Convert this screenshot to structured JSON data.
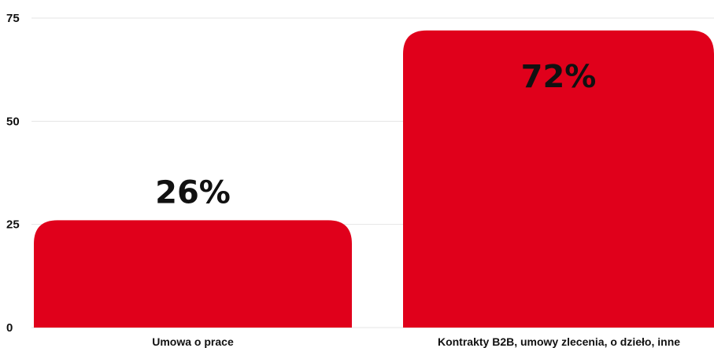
{
  "chart_data": {
    "type": "bar",
    "categories": [
      "Umowa o prace",
      "Kontrakty B2B, umowy zlecenia, o dzieło, inne"
    ],
    "values": [
      26,
      72
    ],
    "value_labels": [
      "26%",
      "72%"
    ],
    "yticks": [
      "0",
      "25",
      "50",
      "75"
    ],
    "ylim": [
      0,
      75
    ],
    "grid": true,
    "bar_color": "#e0001b",
    "title": "",
    "xlabel": "",
    "ylabel": ""
  }
}
